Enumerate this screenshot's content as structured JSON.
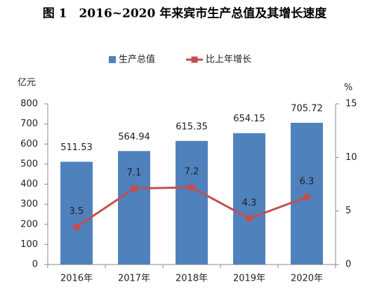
{
  "chart_data": {
    "type": "bar",
    "title": "图 1　2016~2020 年来宾市生产总值及其增长速度",
    "y_label": "亿元",
    "y2_label": "%",
    "categories": [
      "2016年",
      "2017年",
      "2018年",
      "2019年",
      "2020年"
    ],
    "series": [
      {
        "name": "生产总值",
        "type": "bar",
        "color": "#4f81bd",
        "values": [
          511.53,
          564.94,
          615.35,
          654.15,
          705.72
        ]
      },
      {
        "name": "比上年增长",
        "type": "line",
        "axis": "y2",
        "color": "#c0504d",
        "values": [
          3.5,
          7.1,
          7.2,
          4.3,
          6.3
        ]
      }
    ],
    "ylim": [
      0,
      800
    ],
    "yticks": [
      0,
      100,
      200,
      300,
      400,
      500,
      600,
      700,
      800
    ],
    "y2lim": [
      0,
      15
    ],
    "y2ticks": [
      0,
      5,
      10,
      15
    ],
    "legend": "top",
    "grid": false,
    "data_labels": true
  }
}
